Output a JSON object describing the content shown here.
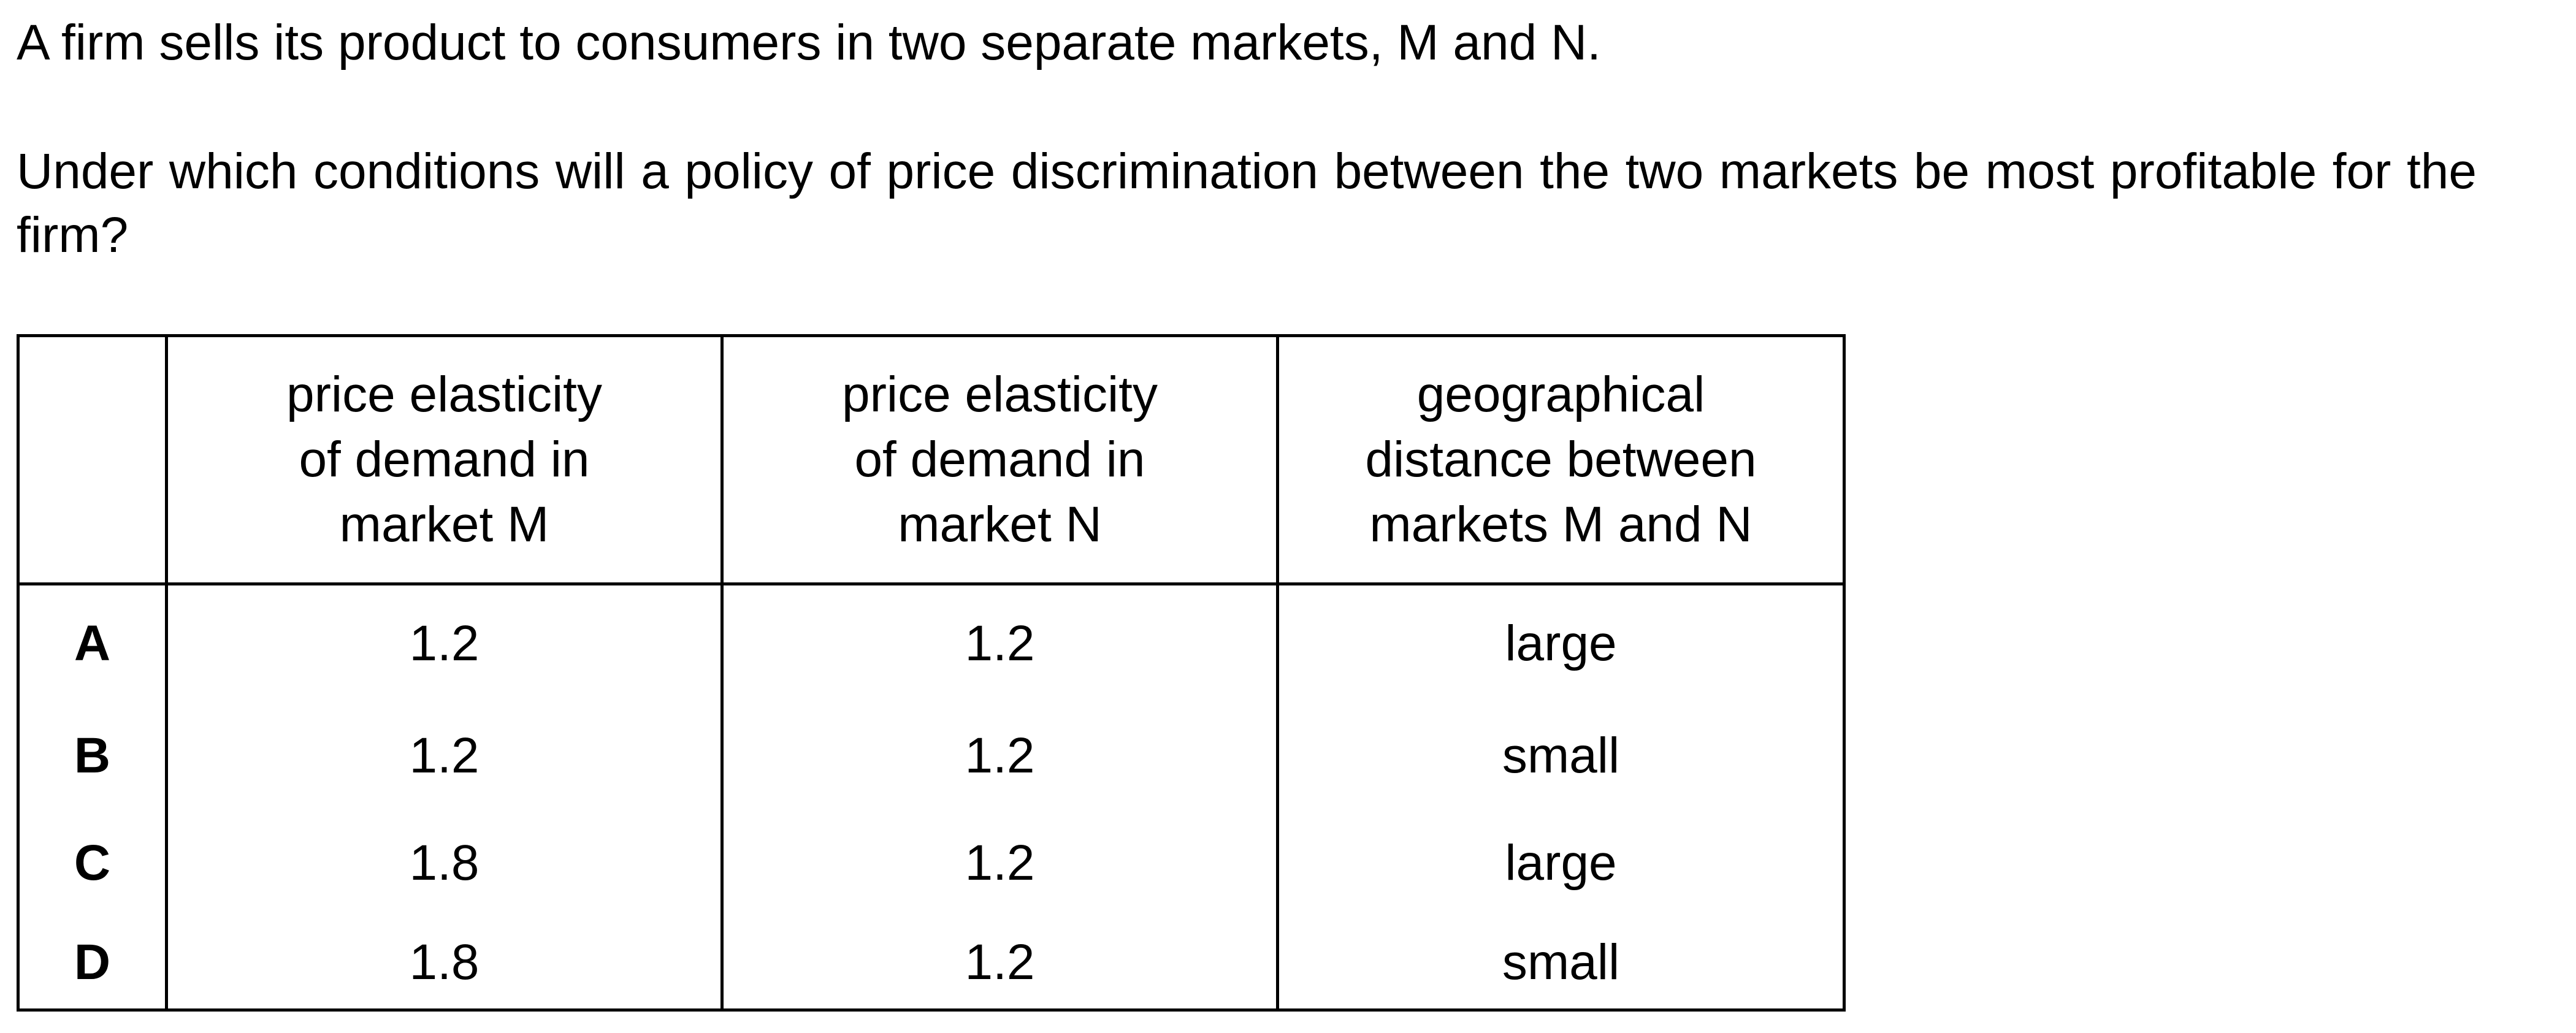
{
  "intro": "A firm sells its product to consumers in two separate markets, M and N.",
  "question": "Under which conditions will a policy of price discrimination between the two markets be most profitable for the firm?",
  "table": {
    "headers": [
      "",
      "price elasticity of demand in market M",
      "price elasticity of demand in market N",
      "geographical distance between markets M and N"
    ],
    "header_lines": {
      "col1": [
        "price elasticity",
        "of demand in",
        "market M"
      ],
      "col2": [
        "price elasticity",
        "of demand in",
        "market N"
      ],
      "col3": [
        "geographical",
        "distance between",
        "markets M and N"
      ]
    },
    "rows": [
      {
        "option": "A",
        "pedM": "1.2",
        "pedN": "1.2",
        "distance": "large"
      },
      {
        "option": "B",
        "pedM": "1.2",
        "pedN": "1.2",
        "distance": "small"
      },
      {
        "option": "C",
        "pedM": "1.8",
        "pedN": "1.2",
        "distance": "large"
      },
      {
        "option": "D",
        "pedM": "1.8",
        "pedN": "1.2",
        "distance": "small"
      }
    ]
  }
}
